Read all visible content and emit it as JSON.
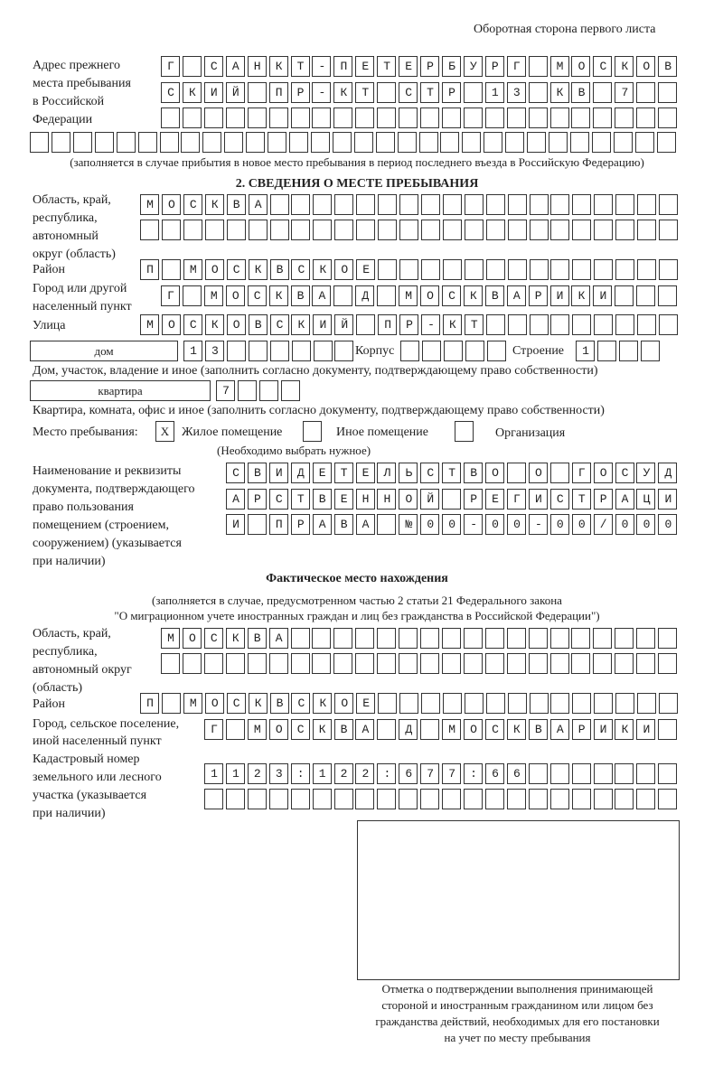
{
  "header": "Оборотная сторона первого листа",
  "prev_address": {
    "label": [
      "Адрес прежнего",
      "места пребывания",
      "в Российской",
      "Федерации"
    ],
    "rows": [
      "Г САНКТ-ПЕТЕРБУРГ МОСКОВ",
      "СКИЙ ПР-КТ СТР 13 КВ 7",
      "",
      ""
    ],
    "note": "(заполняется в случае прибытия в новое место пребывания в период последнего въезда в Российскую Федерацию)"
  },
  "section2": {
    "title": "2. СВЕДЕНИЯ О МЕСТЕ ПРЕБЫВАНИЯ",
    "region_label": [
      "Область, край,",
      "республика,",
      "автономный",
      "округ (область)"
    ],
    "region_rows": [
      "МОСКВА",
      ""
    ],
    "district_label": "Район",
    "district": "П МОСКВСКОЕ",
    "city_label": [
      "Город или другой",
      "населенный пункт"
    ],
    "city": "Г МОСКВА Д МОСКВАРИКИ",
    "street_label": "Улица",
    "street": "МОСКОВСКИЙ ПР-КТ",
    "house_type": "дом",
    "house_number": "13",
    "korpus_label": "Корпус",
    "korpus": "",
    "building_label": "Строение",
    "building": "1",
    "house_note": "Дом, участок, владение и иное (заполнить согласно документу, подтверждающему право собственности)",
    "apt_type": "квартира",
    "apt_number": "7",
    "apt_note": "Квартира, комната, офис и иное (заполнить согласно документу, подтверждающему право собственности)",
    "stay_label": "Место пребывания:",
    "options": [
      {
        "label": "Жилое помещение",
        "mark": "X"
      },
      {
        "label": "Иное помещение",
        "mark": ""
      },
      {
        "label": "Организация",
        "mark": ""
      }
    ],
    "options_note": "(Необходимо выбрать нужное)",
    "doc_label": [
      "Наименование и реквизиты",
      "документа, подтверждающего",
      "право пользования",
      "помещением (строением,",
      "сооружением) (указывается",
      "при наличии)"
    ],
    "doc_rows": [
      "СВИДЕТЕЛЬСТВО О ГОСУД",
      "АРСТВЕННОЙ РЕГИСТРАЦИ",
      "И ПРАВА №00-00-00/000"
    ]
  },
  "actual": {
    "title": "Фактическое место нахождения",
    "note": [
      "(заполняется в случае, предусмотренном частью 2 статьи 21 Федерального закона",
      "\"О миграционном учете иностранных граждан и лиц без гражданства в Российской Федерации\")"
    ],
    "region_label": [
      "Область, край,",
      "республика,",
      "автономный округ",
      "(область)"
    ],
    "region_rows": [
      "МОСКВА",
      ""
    ],
    "district_label": "Район",
    "district": "П МОСКВСКОЕ",
    "city_label": [
      "Город, сельское поселение,",
      "иной населенный пункт"
    ],
    "city": "Г МОСКВА Д МОСКВАРИКИ",
    "cadastre_label": [
      "Кадастровый номер",
      "земельного или лесного",
      "участка (указывается",
      "при наличии)"
    ],
    "cadastre_rows": [
      "1123:122:677:66",
      ""
    ]
  },
  "confirmation": [
    "Отметка о подтверждении выполнения принимающей",
    "стороной и иностранным гражданином или лицом без",
    "гражданства действий, необходимых для его постановки",
    "на учет по месту пребывания"
  ]
}
